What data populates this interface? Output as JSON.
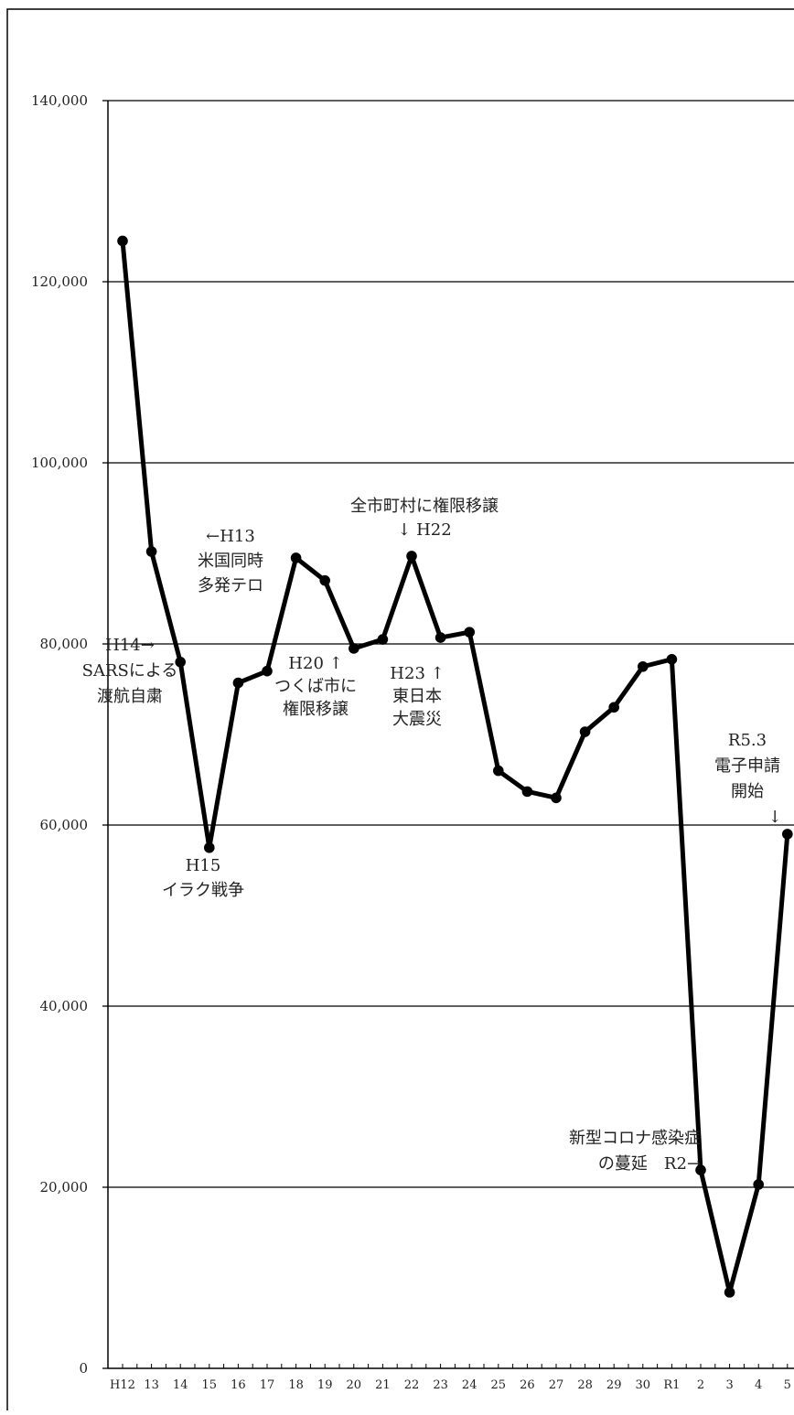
{
  "chart_data": {
    "type": "line",
    "x": [
      "H12",
      "13",
      "14",
      "15",
      "16",
      "17",
      "18",
      "19",
      "20",
      "21",
      "22",
      "23",
      "24",
      "25",
      "26",
      "27",
      "28",
      "29",
      "30",
      "R1",
      "2",
      "3",
      "4",
      "5"
    ],
    "values": [
      124500,
      90200,
      78000,
      57500,
      75700,
      77000,
      89500,
      87000,
      79500,
      80500,
      89700,
      80700,
      81300,
      66000,
      63700,
      63000,
      70300,
      73000,
      77500,
      78300,
      21900,
      8400,
      20300,
      59000
    ],
    "ylim": [
      0,
      140000
    ],
    "yticks": [
      0,
      20000,
      40000,
      60000,
      80000,
      100000,
      120000,
      140000
    ],
    "ytick_labels": [
      "0",
      "20,000",
      "40,000",
      "60,000",
      "80,000",
      "100,000",
      "120,000",
      "140,000"
    ],
    "grid": true,
    "title": "",
    "xlabel": "",
    "ylabel": "",
    "colors": {
      "line": "#000000",
      "grid": "#000000",
      "text": "#222222"
    },
    "annotations": [
      {
        "lines": [
          "←H13",
          "米国同時",
          "多発テロ"
        ]
      },
      {
        "lines": [
          "H14→",
          "SARSによる",
          "渡航自粛"
        ]
      },
      {
        "lines": [
          "H15",
          "イラク戦争"
        ]
      },
      {
        "lines": [
          "H20 ↑",
          "つくば市に",
          "権限移譲"
        ]
      },
      {
        "lines": [
          "全市町村に権限移譲",
          "↓ H22"
        ]
      },
      {
        "lines": [
          "H23 ↑",
          "東日本",
          "大震災"
        ]
      },
      {
        "lines": [
          "R5.3",
          "電子申請",
          "開始",
          "↓"
        ]
      },
      {
        "lines": [
          "新型コロナ感染症",
          "の蔓延　R2→"
        ]
      }
    ]
  }
}
